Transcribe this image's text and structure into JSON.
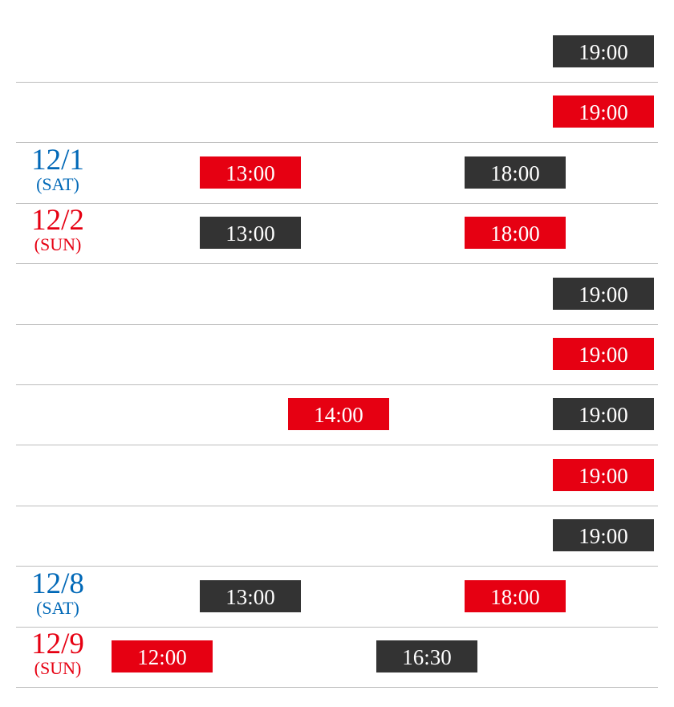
{
  "colors": {
    "red": "#e60012",
    "dark": "#333333",
    "blue": "#0068b7",
    "line": "#bdbdbd"
  },
  "time_columns": [
    "12:00",
    "13:00",
    "14:00",
    "16:30",
    "18:00",
    "19:00"
  ],
  "rows": [
    {
      "date": "",
      "day": "",
      "day_color": "",
      "shows": [
        {
          "time": "19:00",
          "color": "dark"
        }
      ]
    },
    {
      "date": "",
      "day": "",
      "day_color": "",
      "shows": [
        {
          "time": "19:00",
          "color": "red"
        }
      ]
    },
    {
      "date": "12/1",
      "day": "(SAT)",
      "day_color": "blue",
      "shows": [
        {
          "time": "13:00",
          "color": "red"
        },
        {
          "time": "18:00",
          "color": "dark"
        }
      ]
    },
    {
      "date": "12/2",
      "day": "(SUN)",
      "day_color": "red",
      "shows": [
        {
          "time": "13:00",
          "color": "dark"
        },
        {
          "time": "18:00",
          "color": "red"
        }
      ]
    },
    {
      "date": "",
      "day": "",
      "day_color": "",
      "shows": [
        {
          "time": "19:00",
          "color": "dark"
        }
      ]
    },
    {
      "date": "",
      "day": "",
      "day_color": "",
      "shows": [
        {
          "time": "19:00",
          "color": "red"
        }
      ]
    },
    {
      "date": "",
      "day": "",
      "day_color": "",
      "shows": [
        {
          "time": "14:00",
          "color": "red"
        },
        {
          "time": "19:00",
          "color": "dark"
        }
      ]
    },
    {
      "date": "",
      "day": "",
      "day_color": "",
      "shows": [
        {
          "time": "19:00",
          "color": "red"
        }
      ]
    },
    {
      "date": "",
      "day": "",
      "day_color": "",
      "shows": [
        {
          "time": "19:00",
          "color": "dark"
        }
      ]
    },
    {
      "date": "12/8",
      "day": "(SAT)",
      "day_color": "blue",
      "shows": [
        {
          "time": "13:00",
          "color": "dark"
        },
        {
          "time": "18:00",
          "color": "red"
        }
      ]
    },
    {
      "date": "12/9",
      "day": "(SUN)",
      "day_color": "red",
      "shows": [
        {
          "time": "12:00",
          "color": "red"
        },
        {
          "time": "16:30",
          "color": "dark"
        }
      ]
    }
  ]
}
